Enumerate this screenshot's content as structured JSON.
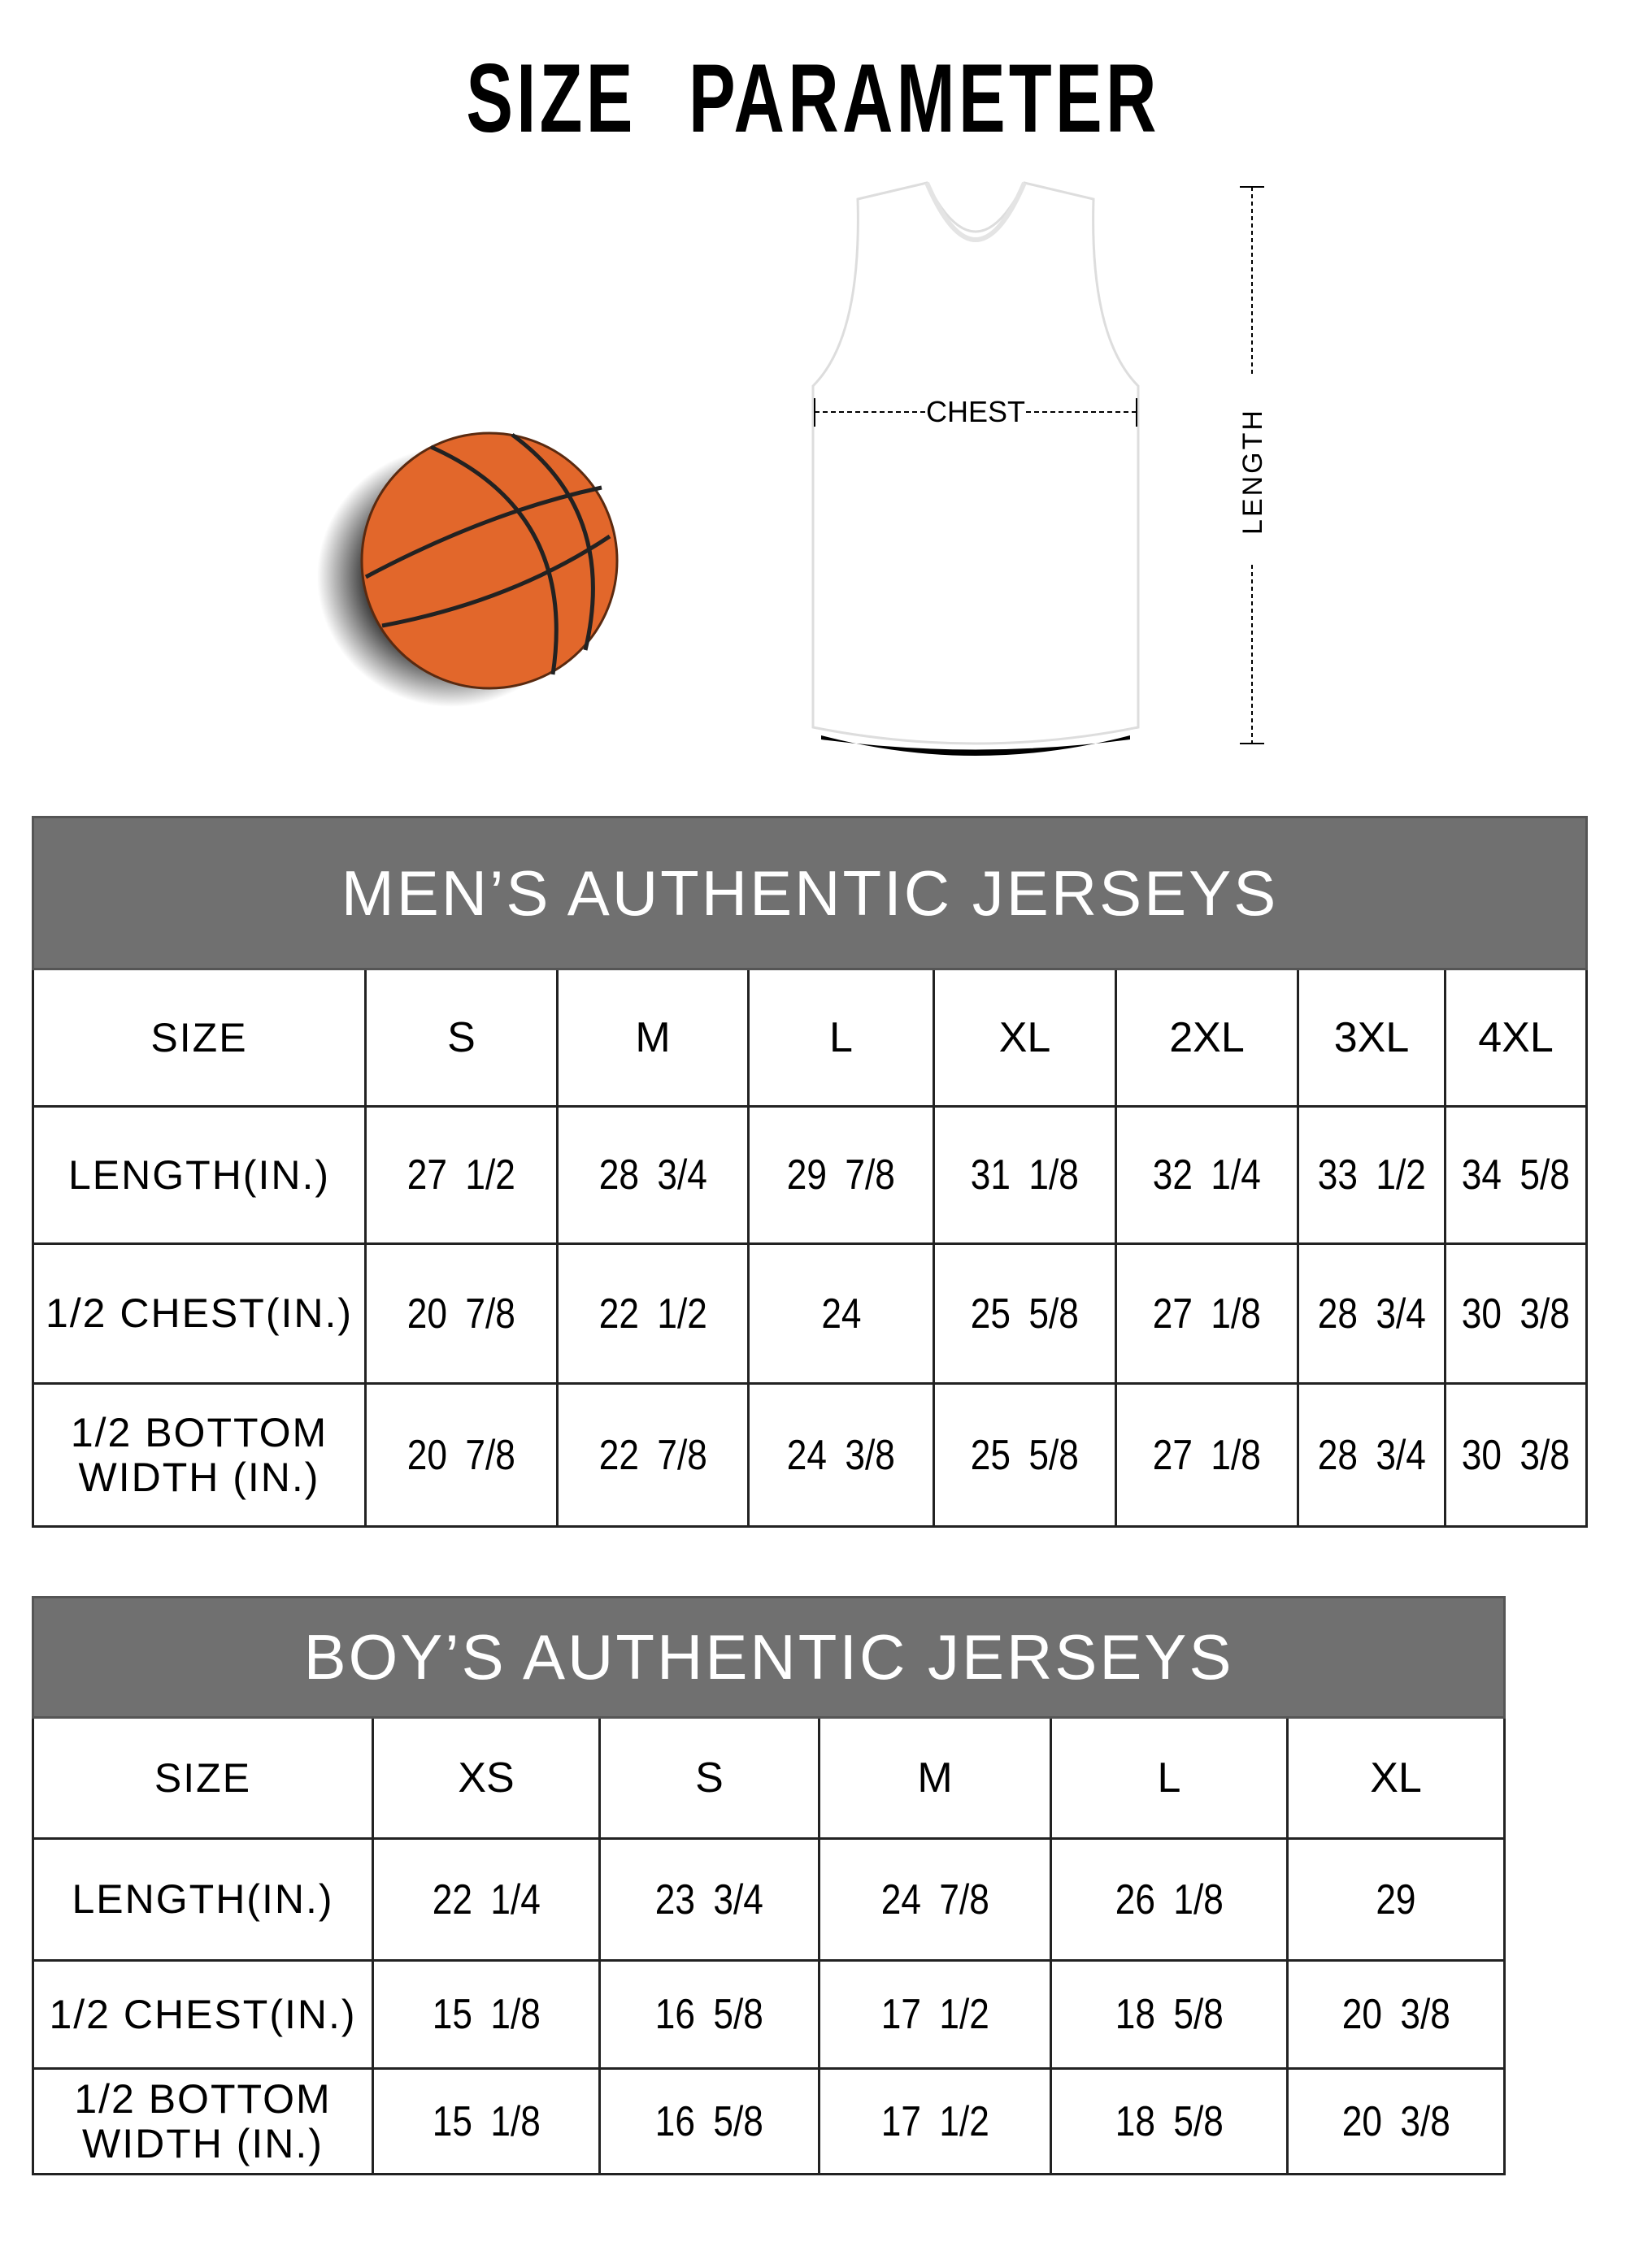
{
  "title": "SIZE PARAMETER",
  "diagram": {
    "chest_label": "CHEST",
    "length_label": "LENGTH",
    "ball_color": "#E2672B",
    "jersey_color": "#FFFFFF"
  },
  "header_color": "#707070",
  "mens": {
    "heading": "MEN’S AUTHENTIC JERSEYS",
    "size_label": "SIZE",
    "sizes": [
      "S",
      "M",
      "L",
      "XL",
      "2XL",
      "3XL",
      "4XL"
    ],
    "rows": [
      {
        "label": "LENGTH(IN.)",
        "values": [
          "27  1/2",
          "28  3/4",
          "29  7/8",
          "31  1/8",
          "32  1/4",
          "33  1/2",
          "34  5/8"
        ]
      },
      {
        "label": "1/2 CHEST(IN.)",
        "values": [
          "20  7/8",
          "22  1/2",
          "24",
          "25  5/8",
          "27  1/8",
          "28  3/4",
          "30  3/8"
        ]
      },
      {
        "label": "1/2 BOTTOM WIDTH  (IN.)",
        "values": [
          "20  7/8",
          "22  7/8",
          "24  3/8",
          "25  5/8",
          "27  1/8",
          "28  3/4",
          "30  3/8"
        ]
      }
    ]
  },
  "boys": {
    "heading": "BOY’S AUTHENTIC JERSEYS",
    "size_label": "SIZE",
    "sizes": [
      "XS",
      "S",
      "M",
      "L",
      "XL"
    ],
    "rows": [
      {
        "label": "LENGTH(IN.)",
        "values": [
          "22  1/4",
          "23  3/4",
          "24  7/8",
          "26  1/8",
          "29"
        ]
      },
      {
        "label": "1/2 CHEST(IN.)",
        "values": [
          "15  1/8",
          "16  5/8",
          "17  1/2",
          "18  5/8",
          "20  3/8"
        ]
      },
      {
        "label": "1/2 BOTTOM WIDTH  (IN.)",
        "values": [
          "15  1/8",
          "16  5/8",
          "17  1/2",
          "18  5/8",
          "20  3/8"
        ]
      }
    ]
  }
}
